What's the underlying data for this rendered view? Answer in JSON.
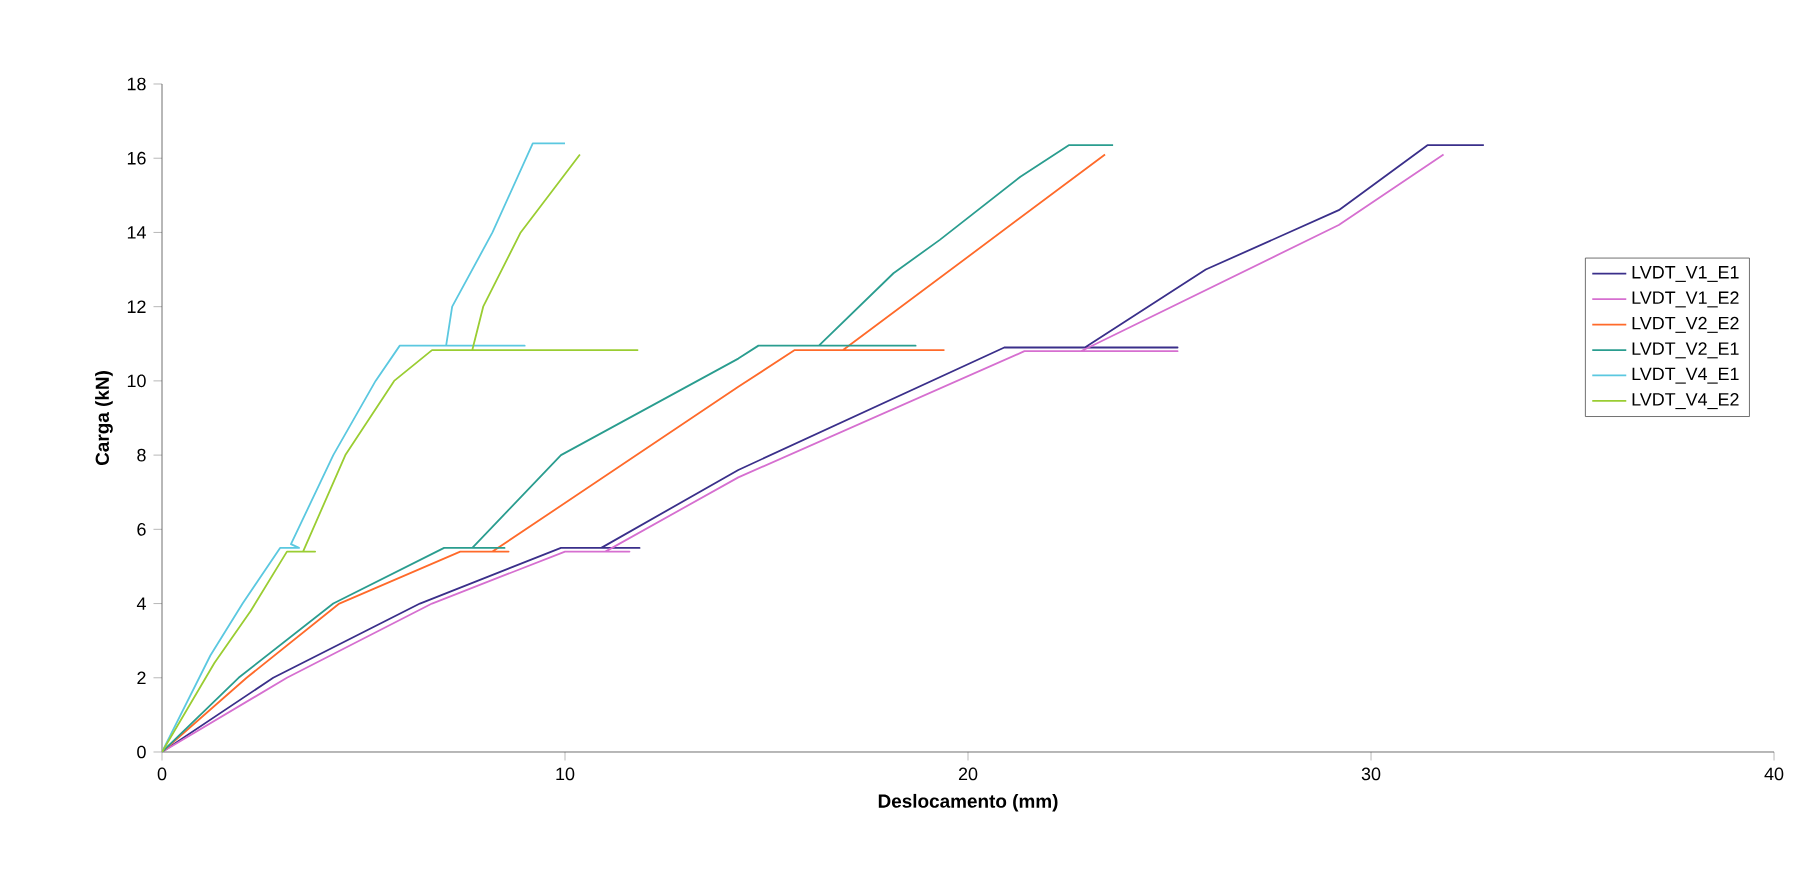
{
  "chart_data": {
    "type": "line",
    "xlabel": "Deslocamento (mm)",
    "ylabel": "Carga (kN)",
    "xlim": [
      0,
      40
    ],
    "ylim": [
      0,
      18
    ],
    "xticks": [
      0,
      10,
      20,
      30,
      40
    ],
    "yticks": [
      0,
      2,
      4,
      6,
      8,
      10,
      12,
      14,
      16,
      18
    ],
    "grid": false,
    "legend": "right",
    "marker": "none",
    "series": [
      {
        "name": "LVDT_V1_E1",
        "color": "#3a2f8a",
        "x": [
          0,
          2.76,
          6.4,
          9.9,
          11.85,
          10.9,
          14.3,
          20.9,
          25.2,
          22.9,
          25.9,
          29.2,
          31.4,
          32.8
        ],
        "values": [
          0,
          2,
          4,
          5.5,
          5.5,
          5.5,
          7.6,
          10.9,
          10.9,
          10.9,
          13.0,
          14.6,
          16.35,
          16.35
        ]
      },
      {
        "name": "LVDT_V1_E2",
        "color": "#d66fd0",
        "x": [
          0,
          3.1,
          6.7,
          10.0,
          11.6,
          11.0,
          14.3,
          21.4,
          25.2,
          22.8,
          29.2,
          31.8
        ],
        "values": [
          0,
          2,
          4,
          5.4,
          5.4,
          5.4,
          7.4,
          10.8,
          10.8,
          10.8,
          14.2,
          16.1
        ]
      },
      {
        "name": "LVDT_V2_E2",
        "color": "#ff6a2a",
        "x": [
          0,
          2.1,
          4.4,
          7.4,
          8.6,
          8.2,
          14.3,
          15.7,
          19.4,
          16.9,
          23.4
        ],
        "values": [
          0,
          2,
          4,
          5.4,
          5.4,
          5.4,
          9.84,
          10.83,
          10.83,
          10.83,
          16.1
        ]
      },
      {
        "name": "LVDT_V2_E1",
        "color": "#2a9d8f",
        "x": [
          0,
          1.9,
          4.25,
          7.0,
          8.5,
          7.7,
          9.9,
          14.3,
          14.8,
          18.7,
          16.3,
          18.15,
          19.3,
          21.3,
          22.5,
          23.6
        ],
        "values": [
          0,
          2,
          4,
          5.5,
          5.5,
          5.5,
          8,
          10.6,
          10.95,
          10.95,
          10.95,
          12.9,
          13.8,
          15.5,
          16.35,
          16.35
        ]
      },
      {
        "name": "LVDT_V4_E1",
        "color": "#5bc8e0",
        "x": [
          0,
          1.2,
          2.0,
          2.93,
          3.4,
          3.2,
          4.25,
          5.3,
          5.9,
          9.0,
          7.05,
          7.2,
          8.2,
          9.2,
          10.0
        ],
        "values": [
          0,
          2.6,
          4.0,
          5.5,
          5.5,
          5.6,
          8,
          10,
          10.95,
          10.95,
          10.95,
          12,
          14,
          16.4,
          16.4
        ]
      },
      {
        "name": "LVDT_V4_E2",
        "color": "#9acd32",
        "x": [
          0,
          1.3,
          2.2,
          3.1,
          3.8,
          3.5,
          4.55,
          5.76,
          6.7,
          11.8,
          7.7,
          7.97,
          8.9,
          10.37
        ],
        "values": [
          0,
          2.4,
          3.8,
          5.4,
          5.4,
          5.4,
          8,
          10,
          10.83,
          10.83,
          10.83,
          12,
          14,
          16.1
        ]
      }
    ]
  }
}
